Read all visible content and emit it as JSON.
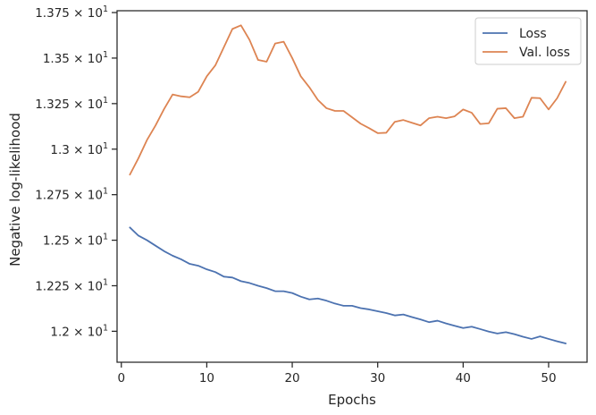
{
  "chart_data": {
    "type": "line",
    "xlabel": "Epochs",
    "ylabel": "Negative log-likelihood",
    "xlim": [
      -0.5,
      54.5
    ],
    "ylim": [
      11.83,
      13.76
    ],
    "grid": false,
    "legend_position": "top-right",
    "xticks": [
      0,
      10,
      20,
      30,
      40,
      50
    ],
    "xtick_labels": [
      "0",
      "10",
      "20",
      "30",
      "40",
      "50"
    ],
    "yticks": [
      12.0,
      12.25,
      12.5,
      12.75,
      13.0,
      13.25,
      13.5,
      13.75
    ],
    "ytick_labels": [
      {
        "mantissa": "1.2",
        "exponent": "1"
      },
      {
        "mantissa": "1.225",
        "exponent": "1"
      },
      {
        "mantissa": "1.25",
        "exponent": "1"
      },
      {
        "mantissa": "1.275",
        "exponent": "1"
      },
      {
        "mantissa": "1.3",
        "exponent": "1"
      },
      {
        "mantissa": "1.325",
        "exponent": "1"
      },
      {
        "mantissa": "1.35",
        "exponent": "1"
      },
      {
        "mantissa": "1.375",
        "exponent": "1"
      }
    ],
    "x": [
      1,
      2,
      3,
      4,
      5,
      6,
      7,
      8,
      9,
      10,
      11,
      12,
      13,
      14,
      15,
      16,
      17,
      18,
      19,
      20,
      21,
      22,
      23,
      24,
      25,
      26,
      27,
      28,
      29,
      30,
      31,
      32,
      33,
      34,
      35,
      36,
      37,
      38,
      39,
      40,
      41,
      42,
      43,
      44,
      45,
      46,
      47,
      48,
      49,
      50,
      51,
      52
    ],
    "series": [
      {
        "name": "Loss",
        "color": "#4c72b0",
        "values": [
          12.57,
          12.525,
          12.5,
          12.47,
          12.44,
          12.415,
          12.395,
          12.37,
          12.36,
          12.34,
          12.325,
          12.3,
          12.295,
          12.275,
          12.265,
          12.25,
          12.237,
          12.22,
          12.22,
          12.21,
          12.19,
          12.175,
          12.18,
          12.168,
          12.152,
          12.14,
          12.14,
          12.127,
          12.12,
          12.11,
          12.1,
          12.087,
          12.092,
          12.078,
          12.065,
          12.05,
          12.058,
          12.043,
          12.03,
          12.018,
          12.025,
          12.012,
          11.998,
          11.988,
          11.995,
          11.984,
          11.97,
          11.958,
          11.972,
          11.958,
          11.945,
          11.933
        ]
      },
      {
        "name": "Val. loss",
        "color": "#dd8452",
        "values": [
          12.86,
          12.95,
          13.05,
          13.13,
          13.22,
          13.3,
          13.29,
          13.285,
          13.315,
          13.4,
          13.46,
          13.56,
          13.66,
          13.68,
          13.6,
          13.49,
          13.48,
          13.58,
          13.59,
          13.5,
          13.4,
          13.34,
          13.27,
          13.225,
          13.21,
          13.21,
          13.175,
          13.14,
          13.115,
          13.088,
          13.09,
          13.15,
          13.16,
          13.145,
          13.13,
          13.17,
          13.178,
          13.17,
          13.18,
          13.218,
          13.2,
          13.138,
          13.142,
          13.222,
          13.225,
          13.17,
          13.178,
          13.282,
          13.28,
          13.218,
          13.28,
          13.37
        ]
      }
    ]
  }
}
